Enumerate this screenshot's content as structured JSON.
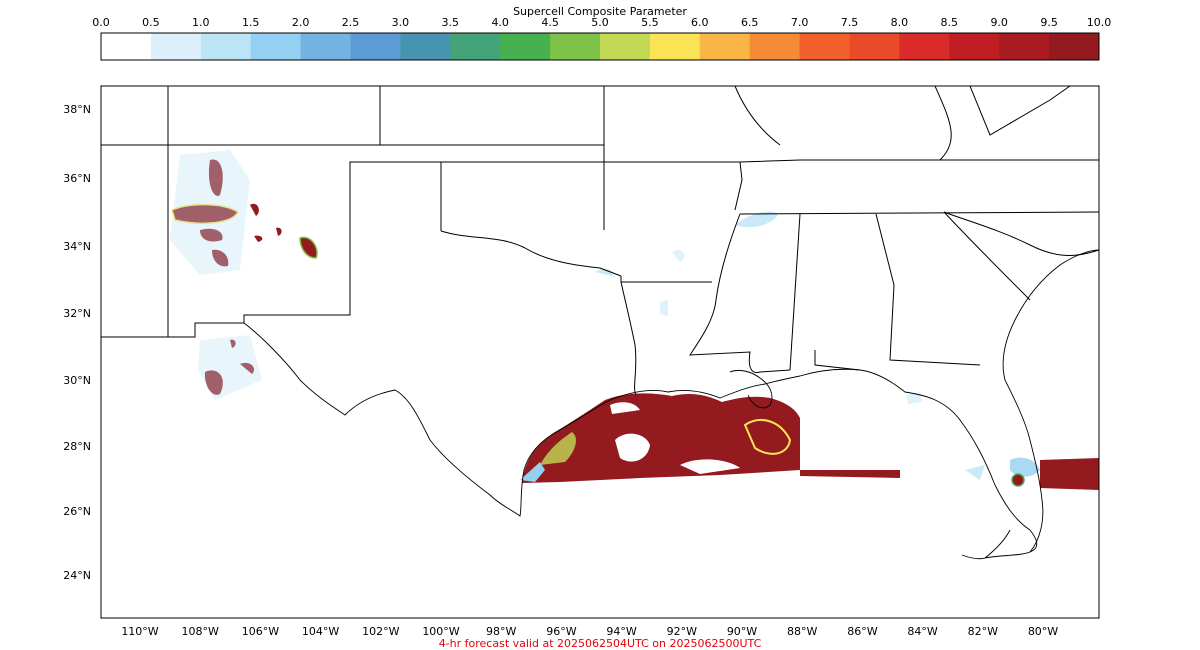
{
  "colorbar": {
    "title": "Supercell Composite Parameter",
    "ticks": [
      "0.0",
      "0.5",
      "1.0",
      "1.5",
      "2.0",
      "2.5",
      "3.0",
      "3.5",
      "4.0",
      "4.5",
      "5.0",
      "5.5",
      "6.0",
      "6.5",
      "7.0",
      "7.5",
      "8.0",
      "8.5",
      "9.0",
      "9.5",
      "10.0"
    ],
    "colors": [
      "#ffffff",
      "#dbf0fb",
      "#bce4f7",
      "#94d0f2",
      "#72b3e2",
      "#5b9cd6",
      "#4694b0",
      "#45a37b",
      "#46b24f",
      "#7fc24a",
      "#c2d956",
      "#fae355",
      "#f9b545",
      "#f78a35",
      "#f2602b",
      "#e84a2a",
      "#da2a2a",
      "#c11d24",
      "#a91d22",
      "#931a1e"
    ]
  },
  "map": {
    "y_ticks": [
      "38°N",
      "36°N",
      "34°N",
      "32°N",
      "30°N",
      "28°N",
      "26°N",
      "24°N"
    ],
    "x_ticks": [
      "110°W",
      "108°W",
      "106°W",
      "104°W",
      "102°W",
      "100°W",
      "98°W",
      "96°W",
      "94°W",
      "92°W",
      "90°W",
      "88°W",
      "86°W",
      "84°W",
      "82°W",
      "80°W"
    ]
  },
  "footer": "4-hr forecast valid at 2025062504UTC on 2025062500UTC"
}
